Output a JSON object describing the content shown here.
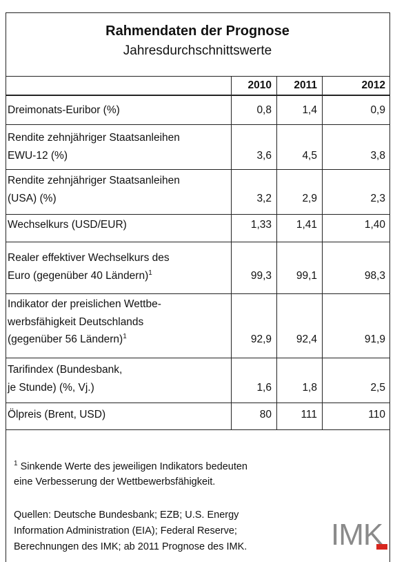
{
  "table": {
    "title": "Rahmendaten der Prognose",
    "subtitle": "Jahresdurchschnittswerte",
    "columns": [
      "2010",
      "2011",
      "2012"
    ],
    "rows": [
      {
        "label": [
          "Dreimonats-Euribor (%)"
        ],
        "values": [
          "0,8",
          "1,4",
          "0,9"
        ]
      },
      {
        "label": [
          "Rendite zehnjähriger Staatsanleihen",
          "EWU-12 (%)"
        ],
        "values": [
          "3,6",
          "4,5",
          "3,8"
        ]
      },
      {
        "label": [
          "Rendite zehnjähriger Staatsanleihen",
          "(USA) (%)"
        ],
        "values": [
          "3,2",
          "2,9",
          "2,3"
        ]
      },
      {
        "label": [
          "Wechselkurs (USD/EUR)"
        ],
        "values": [
          "1,33",
          "1,41",
          "1,40"
        ]
      },
      {
        "label": [
          "Realer effektiver Wechselkurs des",
          "Euro (gegenüber 40 Ländern)"
        ],
        "note": "1",
        "values": [
          "99,3",
          "99,1",
          "98,3"
        ]
      },
      {
        "label": [
          "Indikator der preislichen Wettbe-",
          "werbsfähigkeit Deutschlands",
          "(gegenüber 56 Ländern)"
        ],
        "note": "1",
        "values": [
          "92,9",
          "92,4",
          "91,9"
        ]
      },
      {
        "label": [
          "Tarifindex (Bundesbank,",
          "je Stunde) (%, Vj.)"
        ],
        "values": [
          "1,6",
          "1,8",
          "2,5"
        ]
      },
      {
        "label": [
          "Ölpreis (Brent, USD)"
        ],
        "values": [
          "80",
          "111",
          "110"
        ]
      }
    ]
  },
  "footnote": {
    "mark": "1",
    "lines": [
      "Sinkende Werte des jeweiligen Indikators bedeuten",
      "eine Verbesserung der Wettbewerbsfähigkeit."
    ]
  },
  "sources": [
    "Quellen: Deutsche Bundesbank; EZB; U.S. Energy",
    "Information Administration (EIA); Federal Reserve;",
    "Berechnungen des IMK; ab 2011 Prognose des IMK."
  ],
  "logo": "IMK"
}
